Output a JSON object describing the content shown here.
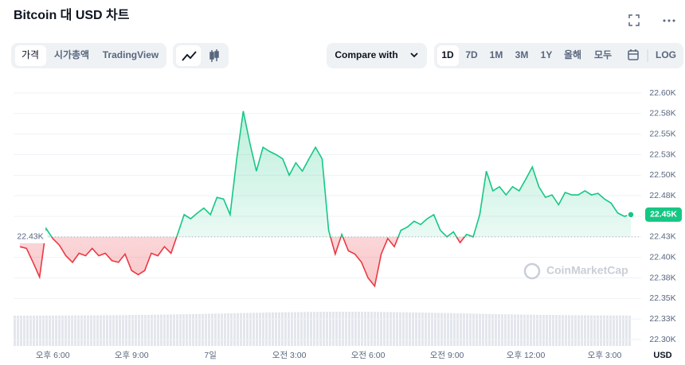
{
  "header": {
    "title": "Bitcoin 대 USD 차트"
  },
  "toolbar": {
    "tabs": [
      "가격",
      "시가총액",
      "TradingView"
    ],
    "compare": "Compare with",
    "ranges": [
      "1D",
      "7D",
      "1M",
      "3M",
      "1Y",
      "올해",
      "모두"
    ],
    "log": "LOG"
  },
  "chart_data": {
    "type": "line",
    "categories": [
      null,
      null,
      null,
      null,
      null,
      "오후 6:00",
      null,
      null,
      null,
      null,
      null,
      null,
      null,
      null,
      null,
      null,
      null,
      "오후 9:00",
      null,
      null,
      null,
      null,
      null,
      null,
      null,
      null,
      null,
      null,
      null,
      "7일",
      null,
      null,
      null,
      null,
      null,
      null,
      null,
      null,
      null,
      null,
      null,
      "오전 3:00",
      null,
      null,
      null,
      null,
      null,
      null,
      null,
      null,
      null,
      null,
      null,
      "오전 6:00",
      null,
      null,
      null,
      null,
      null,
      null,
      null,
      null,
      null,
      null,
      null,
      "오전 9:00",
      null,
      null,
      null,
      null,
      null,
      null,
      null,
      null,
      null,
      null,
      null,
      "오후 12:00",
      null,
      null,
      null,
      null,
      null,
      null,
      null,
      null,
      null,
      null,
      null,
      "오후 3:00",
      null,
      null,
      null,
      null
    ],
    "values": [
      22413,
      22411,
      22394,
      22376,
      22435,
      22423,
      22415,
      22402,
      22394,
      22405,
      22402,
      22411,
      22402,
      22405,
      22396,
      22394,
      22404,
      22384,
      22379,
      22384,
      22405,
      22402,
      22413,
      22405,
      22428,
      22452,
      22447,
      22454,
      22460,
      22452,
      22473,
      22471,
      22452,
      22520,
      22578,
      22539,
      22505,
      22534,
      22529,
      22525,
      22520,
      22500,
      22515,
      22505,
      22520,
      22534,
      22520,
      22433,
      22404,
      22428,
      22408,
      22404,
      22394,
      22375,
      22365,
      22404,
      22423,
      22413,
      22433,
      22437,
      22444,
      22440,
      22447,
      22452,
      22433,
      22425,
      22431,
      22418,
      22428,
      22425,
      22452,
      22505,
      22481,
      22486,
      22476,
      22486,
      22481,
      22495,
      22510,
      22486,
      22473,
      22476,
      22464,
      22479,
      22476,
      22476,
      22481,
      22476,
      22478,
      22471,
      22466,
      22454,
      22450,
      22452
    ],
    "color_up": "#16c784",
    "color_down": "#ea3943",
    "baseline": {
      "value": 22425,
      "label": "22.43K"
    },
    "current": {
      "value": 22452,
      "label": "22.45K"
    },
    "ylim": [
      22300,
      22600
    ],
    "yticks": [
      {
        "value": 22300,
        "label": "22.30K"
      },
      {
        "value": 22325,
        "label": "22.33K"
      },
      {
        "value": 22350,
        "label": "22.35K"
      },
      {
        "value": 22375,
        "label": "22.38K"
      },
      {
        "value": 22400,
        "label": "22.40K"
      },
      {
        "value": 22425,
        "label": "22.43K"
      },
      {
        "value": 22450,
        "label": "22.45K"
      },
      {
        "value": 22475,
        "label": "22.48K"
      },
      {
        "value": 22500,
        "label": "22.50K"
      },
      {
        "value": 22525,
        "label": "22.53K"
      },
      {
        "value": 22550,
        "label": "22.55K"
      },
      {
        "value": 22575,
        "label": "22.58K"
      },
      {
        "value": 22600,
        "label": "22.60K"
      }
    ],
    "x_unit": "USD",
    "watermark": "CoinMarketCap",
    "grid": true
  }
}
